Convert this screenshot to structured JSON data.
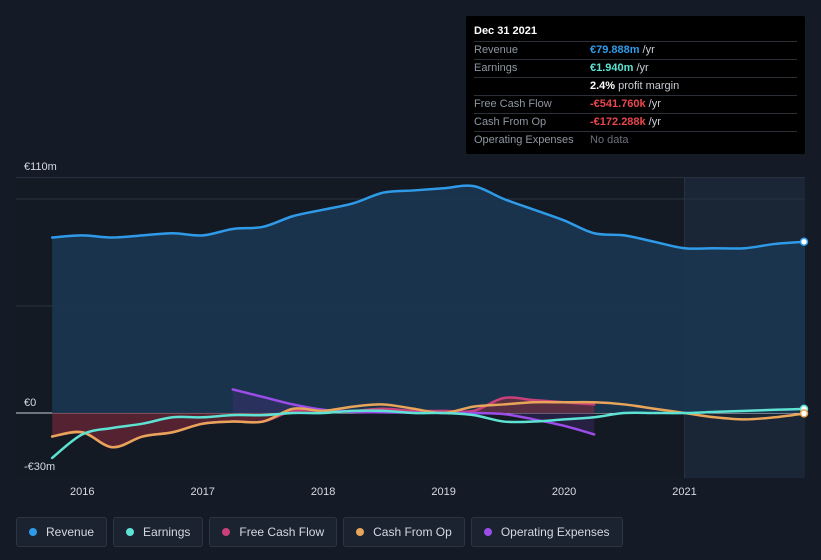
{
  "tooltip": {
    "date": "Dec 31 2021",
    "rows": [
      {
        "label": "Revenue",
        "value": "€79.888m",
        "unit": "/yr",
        "color": "#2f9be8"
      },
      {
        "label": "Earnings",
        "value": "€1.940m",
        "unit": "/yr",
        "color": "#5de2d3"
      },
      {
        "label": "",
        "value": "2.4%",
        "unit": "profit margin",
        "color": "#ffffff"
      },
      {
        "label": "Free Cash Flow",
        "value": "-€541.760k",
        "unit": "/yr",
        "color": "#e8474d"
      },
      {
        "label": "Cash From Op",
        "value": "-€172.288k",
        "unit": "/yr",
        "color": "#e8474d"
      },
      {
        "label": "Operating Expenses",
        "value": "No data",
        "unit": "",
        "color": "#6b717b"
      }
    ]
  },
  "legend": [
    {
      "label": "Revenue",
      "color": "#2f9be8"
    },
    {
      "label": "Earnings",
      "color": "#5de2d3"
    },
    {
      "label": "Free Cash Flow",
      "color": "#c9407a"
    },
    {
      "label": "Cash From Op",
      "color": "#e8a55a"
    },
    {
      "label": "Operating Expenses",
      "color": "#9b4de8"
    }
  ],
  "chart_data": {
    "type": "area",
    "y_unit_labels": [
      "€110m",
      "€0",
      "-€30m"
    ],
    "ylim": [
      -30,
      110
    ],
    "x_ticks": [
      "2016",
      "2017",
      "2018",
      "2019",
      "2020",
      "2021"
    ],
    "x_tick_values": [
      2016,
      2017,
      2018,
      2019,
      2020,
      2021
    ],
    "xlim": [
      2015.45,
      2022.0
    ],
    "forecast_start": 2021.0,
    "series": [
      {
        "name": "Revenue",
        "color": "#2f9be8",
        "x": [
          2015.75,
          2016.0,
          2016.25,
          2016.5,
          2016.75,
          2017.0,
          2017.25,
          2017.5,
          2017.75,
          2018.0,
          2018.25,
          2018.5,
          2018.75,
          2019.0,
          2019.25,
          2019.5,
          2019.75,
          2020.0,
          2020.25,
          2020.5,
          2020.75,
          2021.0,
          2021.25,
          2021.5,
          2021.75,
          2022.0
        ],
        "y": [
          82,
          83,
          82,
          83,
          84,
          83,
          86,
          87,
          92,
          95,
          98,
          103,
          104,
          105,
          106,
          100,
          95,
          90,
          84,
          83,
          80,
          77,
          77,
          77,
          79,
          80
        ]
      },
      {
        "name": "Earnings",
        "color": "#5de2d3",
        "x": [
          2015.75,
          2016.0,
          2016.25,
          2016.5,
          2016.75,
          2017.0,
          2017.25,
          2017.5,
          2017.75,
          2018.0,
          2018.25,
          2018.5,
          2018.75,
          2019.0,
          2019.25,
          2019.5,
          2019.75,
          2020.0,
          2020.25,
          2020.5,
          2020.75,
          2021.0,
          2021.25,
          2021.5,
          2021.75,
          2022.0
        ],
        "y": [
          -21,
          -10,
          -7,
          -5,
          -2,
          -2,
          -1,
          -1,
          0,
          0,
          1,
          1,
          0,
          0,
          -1,
          -4,
          -4,
          -3,
          -2,
          0,
          0,
          0,
          0.5,
          1,
          1.5,
          1.9
        ]
      },
      {
        "name": "Free Cash Flow",
        "color": "#c9407a",
        "x": [
          2015.75,
          2016.0,
          2016.25,
          2016.5,
          2016.75,
          2017.0,
          2017.25,
          2017.5,
          2017.75,
          2018.0,
          2018.25,
          2018.5,
          2018.75,
          2019.0,
          2019.25,
          2019.5,
          2019.75,
          2020.0,
          2020.25
        ],
        "y": [
          -11,
          -9,
          -16,
          -11,
          -9,
          -5,
          -4,
          -4,
          1,
          1,
          1,
          2,
          1,
          1,
          1,
          7,
          6,
          5,
          4
        ]
      },
      {
        "name": "Cash From Op",
        "color": "#e8a55a",
        "x": [
          2015.75,
          2016.0,
          2016.25,
          2016.5,
          2016.75,
          2017.0,
          2017.25,
          2017.5,
          2017.75,
          2018.0,
          2018.25,
          2018.5,
          2018.75,
          2019.0,
          2019.25,
          2019.5,
          2019.75,
          2020.0,
          2020.25,
          2020.5,
          2020.75,
          2021.0,
          2021.25,
          2021.5,
          2021.75,
          2022.0
        ],
        "y": [
          -11,
          -9,
          -16,
          -11,
          -9,
          -5,
          -4,
          -4,
          2,
          1,
          3,
          4,
          2,
          0,
          3,
          4,
          5,
          5,
          5,
          4,
          2,
          0,
          -2,
          -3,
          -2,
          -0.2
        ]
      },
      {
        "name": "Operating Expenses",
        "color": "#9b4de8",
        "x": [
          2017.25,
          2017.5,
          2017.75,
          2018.0,
          2018.25,
          2018.5,
          2018.75,
          2019.0,
          2019.25,
          2019.5,
          2019.75,
          2020.0,
          2020.25
        ],
        "y": [
          11,
          7.5,
          4,
          1.5,
          0.5,
          0.3,
          0.2,
          0,
          0,
          -0.5,
          -3,
          -6,
          -10
        ]
      }
    ]
  }
}
